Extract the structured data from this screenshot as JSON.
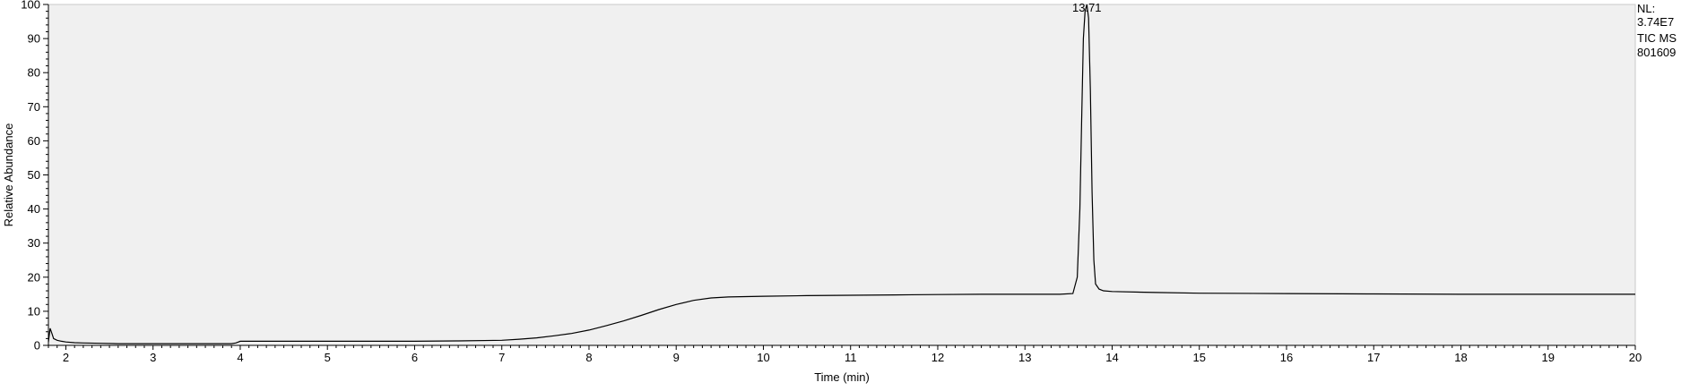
{
  "chart_data": {
    "type": "line",
    "xlabel": "Time (min)",
    "ylabel": "Relative Abundance",
    "xlim": [
      1.8,
      20.0
    ],
    "ylim": [
      0,
      100
    ],
    "x_ticks": [
      2,
      3,
      4,
      5,
      6,
      7,
      8,
      9,
      10,
      11,
      12,
      13,
      14,
      15,
      16,
      17,
      18,
      19,
      20
    ],
    "y_ticks": [
      0,
      10,
      20,
      30,
      40,
      50,
      60,
      70,
      80,
      90,
      100
    ],
    "peak_label": {
      "x": 13.71,
      "y": 100,
      "text": "13.71"
    },
    "info_lines": [
      "NL:",
      "3.74E7",
      "TIC  MS",
      "801609"
    ],
    "grid": false,
    "plot_background": "#f0f0f0",
    "line_color": "#000000",
    "series": [
      {
        "x": [
          1.8,
          1.82,
          1.84,
          1.86,
          1.9,
          1.95,
          2.0,
          2.1,
          2.2,
          2.4,
          2.6,
          2.8,
          3.0,
          3.2,
          3.4,
          3.6,
          3.8,
          3.9,
          3.95,
          4.0,
          4.2,
          4.5,
          5.0,
          5.5,
          6.0,
          6.5,
          7.0,
          7.2,
          7.4,
          7.6,
          7.8,
          8.0,
          8.2,
          8.4,
          8.6,
          8.8,
          9.0,
          9.2,
          9.4,
          9.6,
          9.8,
          10.0,
          10.5,
          11.0,
          11.5,
          12.0,
          12.5,
          13.0,
          13.4,
          13.55,
          13.6,
          13.63,
          13.65,
          13.67,
          13.69,
          13.71,
          13.73,
          13.75,
          13.77,
          13.79,
          13.81,
          13.85,
          13.9,
          14.0,
          14.5,
          15.0,
          16.0,
          17.0,
          18.0,
          19.0,
          20.0
        ],
        "y": [
          1.0,
          5.0,
          3.5,
          2.0,
          1.5,
          1.2,
          1.0,
          0.8,
          0.7,
          0.6,
          0.5,
          0.5,
          0.5,
          0.5,
          0.5,
          0.5,
          0.5,
          0.5,
          0.7,
          1.2,
          1.2,
          1.2,
          1.2,
          1.2,
          1.2,
          1.3,
          1.5,
          1.8,
          2.2,
          2.8,
          3.5,
          4.5,
          5.8,
          7.2,
          8.8,
          10.5,
          12.0,
          13.2,
          13.9,
          14.2,
          14.3,
          14.4,
          14.6,
          14.7,
          14.8,
          14.9,
          15.0,
          15.0,
          15.0,
          15.2,
          20.0,
          40.0,
          65.0,
          90.0,
          98.0,
          100.0,
          96.0,
          75.0,
          45.0,
          25.0,
          18.0,
          16.5,
          16.0,
          15.8,
          15.5,
          15.3,
          15.2,
          15.1,
          15.0,
          15.0,
          15.0
        ]
      }
    ]
  }
}
